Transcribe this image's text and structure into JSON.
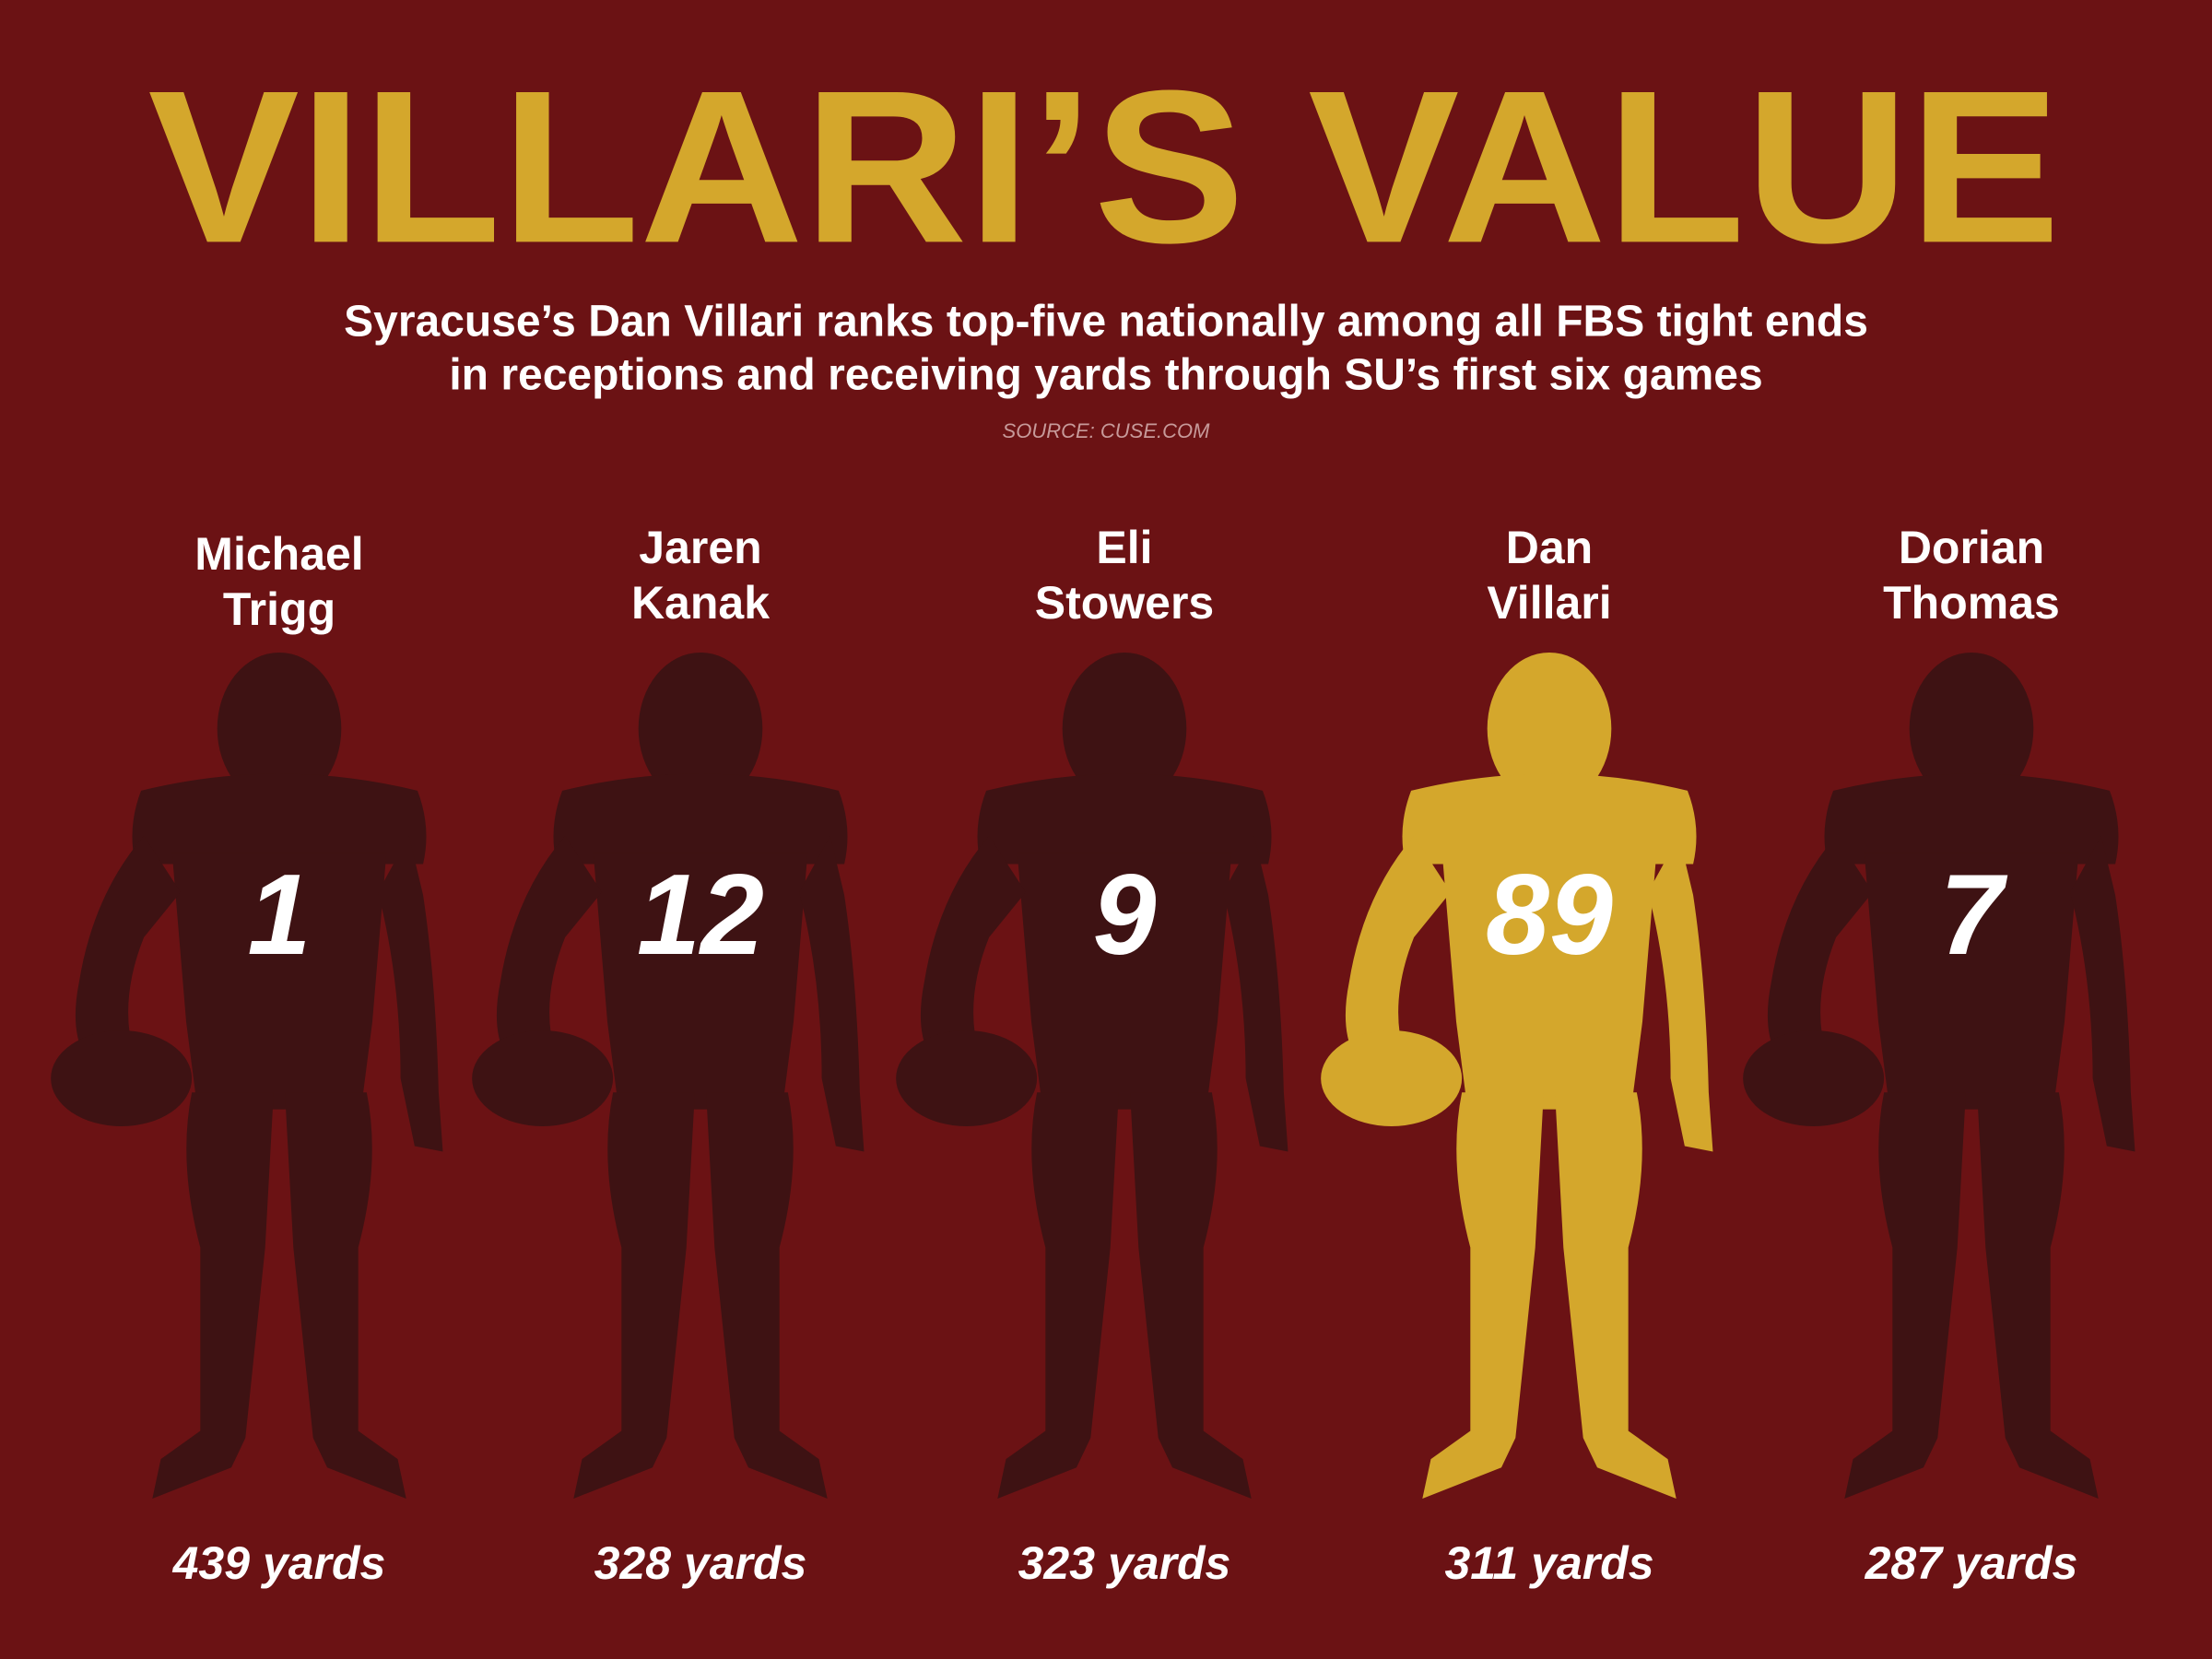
{
  "title": "VILLARI’S VALUE",
  "subtitle": [
    "Syracuse’s Dan Villari ranks top-five nationally among all FBS tight ends",
    "in receptions and receiving yards through SU’s first six games"
  ],
  "source": "SOURCE: CUSE.COM",
  "players": [
    {
      "first": "Michael",
      "last": "Trigg",
      "number": 1,
      "yards": "439 yards",
      "highlight": false
    },
    {
      "first": "Jaren",
      "last": "Kanak",
      "number": 12,
      "yards": "328 yards",
      "highlight": false
    },
    {
      "first": "Eli",
      "last": "Stowers",
      "number": 9,
      "yards": "323 yards",
      "highlight": false
    },
    {
      "first": "Dan",
      "last": "Villari",
      "number": 89,
      "yards": "311 yards",
      "highlight": true
    },
    {
      "first": "Dorian",
      "last": "Thomas",
      "number": 7,
      "yards": "287 yards",
      "highlight": false
    }
  ]
}
